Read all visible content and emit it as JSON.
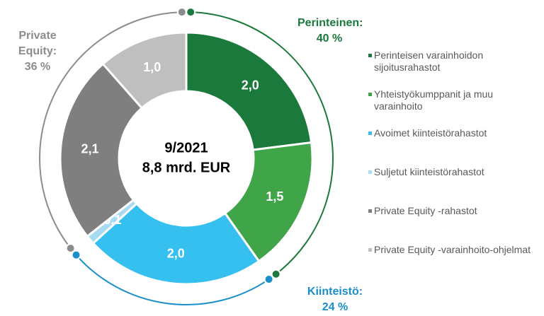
{
  "chart_data": {
    "type": "donut",
    "center_text": [
      "9/2021",
      "8,8 mrd. EUR"
    ],
    "categories": [
      "Perinteisen varainhoidon sijoitusrahastot",
      "Yhteistyökumppanit ja muu varainhoito",
      "Avoimet kiinteistörahastot",
      "Suljetut kiinteistörahastot",
      "Private Equity -rahastot",
      "Private Equity -varainhoito-ohjelmat"
    ],
    "values": [
      2.0,
      1.5,
      2.0,
      0.1,
      2.1,
      1.0
    ],
    "value_labels": [
      "2,0",
      "1,5",
      "2,0",
      "0,1",
      "2,1",
      "1,0"
    ],
    "colors": [
      "#1b7a3b",
      "#40a549",
      "#36c0ef",
      "#a8dbf2",
      "#7f7f80",
      "#bfbfc0"
    ],
    "groups": {
      "names": [
        "Perinteinen:",
        "Kiinteistö:",
        "Private Equity:"
      ],
      "values": [
        40,
        24,
        36
      ],
      "value_labels": [
        "40 %",
        "24 %",
        "36 %"
      ],
      "colors": [
        "#1b7a3b",
        "#1a8fca",
        "#8c8c8d"
      ]
    }
  }
}
